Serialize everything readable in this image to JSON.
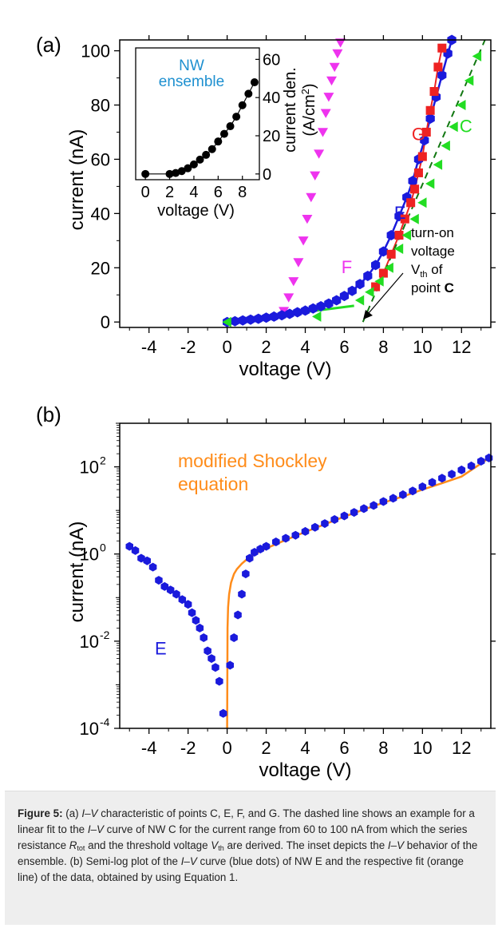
{
  "colors": {
    "C": "#22dd22",
    "E": "#1a1adc",
    "F": "#ee33ee",
    "G": "#ee2222",
    "fit": "#ff8c1a",
    "inset_label": "#1e90d0",
    "dashed_fit": "#117711"
  },
  "chart_data": [
    {
      "type": "scatter",
      "panel_label": "(a)",
      "xlabel": "voltage (V)",
      "ylabel": "current (nA)",
      "xlim": [
        -5.5,
        13.5
      ],
      "ylim": [
        -2,
        104
      ],
      "xticks": [
        "-4",
        "-2",
        "0",
        "2",
        "4",
        "6",
        "8",
        "10",
        "12"
      ],
      "yticks": [
        "0",
        "20",
        "40",
        "60",
        "80",
        "100"
      ],
      "annotation": {
        "line1": "turn-on",
        "line2": "voltage",
        "line3_main": "V",
        "line3_sub": "th",
        "line3_after": " of",
        "line4": "point ",
        "line4_bold": "C"
      },
      "series": [
        {
          "name": "F",
          "marker": "triangle-down",
          "x": [
            2.9,
            3.15,
            3.4,
            3.65,
            3.9,
            4.1,
            4.3,
            4.5,
            4.7,
            4.9,
            5.05,
            5.2,
            5.35,
            5.5,
            5.65,
            5.8
          ],
          "y": [
            4,
            9,
            15,
            22,
            30,
            38,
            46,
            54,
            62,
            70,
            77,
            83,
            89,
            94,
            99,
            103
          ]
        },
        {
          "name": "E",
          "marker": "hexagon",
          "x": [
            0,
            0.4,
            0.8,
            1.2,
            1.6,
            2.0,
            2.4,
            2.8,
            3.2,
            3.6,
            4.0,
            4.4,
            4.8,
            5.2,
            5.6,
            6.0,
            6.4,
            6.8,
            7.2,
            7.6,
            8.0,
            8.4,
            8.8,
            9.2,
            9.5,
            9.8,
            10.1,
            10.4,
            10.7,
            11.0,
            11.3,
            11.5
          ],
          "y": [
            0,
            0.3,
            0.6,
            0.9,
            1.2,
            1.6,
            2.0,
            2.5,
            3.0,
            3.6,
            4.2,
            5.0,
            5.8,
            6.8,
            8.0,
            9.6,
            11.5,
            14,
            17,
            21,
            26,
            32,
            39,
            46,
            52,
            60,
            67,
            75,
            83,
            91,
            99,
            104
          ]
        },
        {
          "name": "G",
          "marker": "square",
          "x": [
            7.6,
            8.0,
            8.4,
            8.8,
            9.1,
            9.4,
            9.6,
            9.8,
            10.0,
            10.2,
            10.4,
            10.6,
            10.8,
            11.0
          ],
          "y": [
            13,
            18,
            25,
            32,
            38,
            44,
            49,
            55,
            61,
            70,
            78,
            85,
            94,
            101
          ]
        },
        {
          "name": "C",
          "marker": "triangle-left",
          "x": [
            0,
            4.6,
            6.8,
            7.3,
            7.8,
            8.3,
            8.8,
            9.2,
            9.6,
            10.0,
            10.4,
            10.8,
            11.2,
            11.6,
            12.0,
            12.4,
            12.8
          ],
          "y": [
            0,
            2,
            8,
            11,
            15,
            20,
            27,
            32,
            38,
            44,
            51,
            58,
            65,
            72,
            80,
            89,
            98
          ]
        }
      ],
      "inset": {
        "label_line1": "NW",
        "label_line2": "ensemble",
        "xlabel": "voltage (V)",
        "ylabel_main": "current den.",
        "ylabel_unit": "(A/cm",
        "ylabel_sup": "2",
        "ylabel_close": ")",
        "xlim": [
          -0.8,
          9.4
        ],
        "ylim": [
          -3,
          66
        ],
        "xticks": [
          "0",
          "2",
          "4",
          "6",
          "8"
        ],
        "yticks": [
          "0",
          "20",
          "40",
          "60"
        ],
        "x": [
          0,
          2,
          2.5,
          3,
          3.5,
          4,
          4.5,
          5,
          5.5,
          6,
          6.5,
          7,
          7.5,
          8,
          8.5,
          9
        ],
        "y": [
          0,
          0,
          0.5,
          1.5,
          3,
          5,
          7.5,
          10,
          13,
          17,
          21,
          25,
          30,
          36,
          42,
          48
        ]
      }
    },
    {
      "type": "scatter",
      "panel_label": "(b)",
      "xlabel": "voltage (V)",
      "ylabel": "current (nA)",
      "yscale": "log",
      "xlim": [
        -5.5,
        13.5
      ],
      "ylim": [
        0.0001,
        1000
      ],
      "xticks": [
        "-4",
        "-2",
        "0",
        "2",
        "4",
        "6",
        "8",
        "10",
        "12"
      ],
      "yticks": [
        {
          "base": "10",
          "exp": "-4"
        },
        {
          "base": "10",
          "exp": "-2"
        },
        {
          "base": "10",
          "exp": "0"
        },
        {
          "base": "10",
          "exp": "2"
        }
      ],
      "fit_label_line1": "modified Shockley",
      "fit_label_line2": "equation",
      "series_label": "E",
      "series": [
        {
          "name": "E",
          "marker": "hexagon",
          "x": [
            -5.0,
            -4.7,
            -4.4,
            -4.1,
            -3.8,
            -3.5,
            -3.2,
            -2.9,
            -2.6,
            -2.3,
            -2.0,
            -1.8,
            -1.6,
            -1.4,
            -1.2,
            -1.0,
            -0.8,
            -0.6,
            -0.4,
            -0.2,
            0.15,
            0.35,
            0.55,
            0.75,
            0.95,
            1.15,
            1.4,
            1.7,
            2.0,
            2.5,
            3.0,
            3.5,
            4.0,
            4.5,
            5.0,
            5.5,
            6.0,
            6.5,
            7.0,
            7.5,
            8.0,
            8.5,
            9.0,
            9.5,
            10.0,
            10.5,
            11.0,
            11.5,
            12.0,
            12.5,
            13.0,
            13.4
          ],
          "y": [
            1.5,
            1.2,
            0.8,
            0.7,
            0.5,
            0.25,
            0.18,
            0.15,
            0.12,
            0.09,
            0.07,
            0.045,
            0.03,
            0.02,
            0.012,
            0.006,
            0.004,
            0.0025,
            0.0012,
            0.00022,
            0.0028,
            0.012,
            0.04,
            0.12,
            0.35,
            0.8,
            1.1,
            1.3,
            1.5,
            1.9,
            2.3,
            2.7,
            3.3,
            4.1,
            5.0,
            6.2,
            7.5,
            9.0,
            11,
            13,
            16,
            19,
            23,
            28,
            35,
            44,
            55,
            68,
            85,
            105,
            135,
            160
          ]
        }
      ],
      "fit": {
        "name": "modified Shockley equation",
        "x": [
          0.0,
          0.02,
          0.05,
          0.1,
          0.2,
          0.35,
          0.5,
          0.75,
          1.0,
          1.5,
          2.0,
          3.0,
          4.0,
          5.0,
          6.0,
          7.0,
          8.0,
          9.0,
          10.0,
          11.0,
          12.0,
          13.0,
          13.4
        ],
        "y": [
          0.0001,
          0.02,
          0.06,
          0.12,
          0.22,
          0.35,
          0.45,
          0.6,
          0.75,
          1.05,
          1.35,
          2.1,
          3.2,
          4.8,
          7.2,
          10.5,
          15,
          21,
          30,
          42,
          60,
          120,
          160
        ]
      }
    }
  ],
  "caption": {
    "figure_label": "Figure 5:",
    "seg1": " (a) ",
    "iv1": "I–V",
    "seg2": " characteristic of points C, E, F, and G. The dashed line shows an example for a linear fit to the ",
    "iv2": "I–V",
    "seg3": " curve of NW C for the current range from 60 to 100 nA from which the series resistance ",
    "rtot_main": "R",
    "rtot_sub": "tot",
    "seg4": " and the threshold voltage ",
    "vth_main": "V",
    "vth_sub": "th",
    "seg5": " are derived. The inset depicts the ",
    "iv3": "I–V",
    "seg6": " behavior of the ensemble. (b) Semi-log plot of the ",
    "iv4": "I–V",
    "seg7": " curve (blue dots) of NW E and the respective fit (orange line) of the data, obtained by using Equation 1."
  }
}
